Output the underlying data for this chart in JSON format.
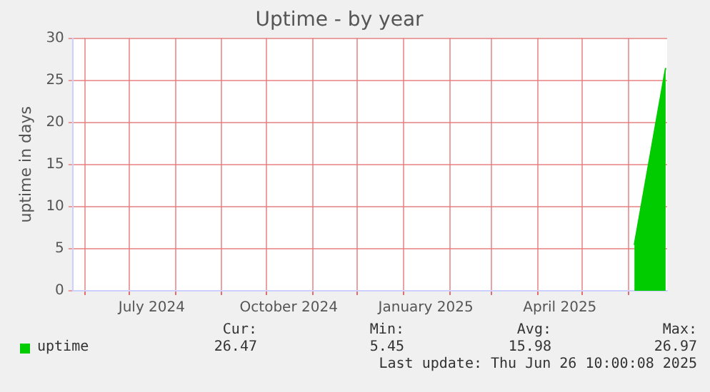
{
  "chart_data": {
    "type": "area",
    "title": "Uptime - by year",
    "ylabel": "uptime in days",
    "x": [
      "2025-06-05",
      "2025-06-26"
    ],
    "series": [
      {
        "name": "uptime",
        "color": "#00cc00",
        "values": [
          5.45,
          26.47
        ]
      }
    ],
    "xlim": [
      "2024-05-24",
      "2025-06-27"
    ],
    "xticks": [
      {
        "value": "2024-06-01",
        "label": null
      },
      {
        "value": "2024-07-01",
        "label": null
      },
      {
        "value": "2024-07-16",
        "label": "July 2024"
      },
      {
        "value": "2024-08-01",
        "label": null
      },
      {
        "value": "2024-09-01",
        "label": null
      },
      {
        "value": "2024-10-01",
        "label": null
      },
      {
        "value": "2024-10-16",
        "label": "October 2024"
      },
      {
        "value": "2024-11-01",
        "label": null
      },
      {
        "value": "2024-12-01",
        "label": null
      },
      {
        "value": "2025-01-01",
        "label": null
      },
      {
        "value": "2025-01-16",
        "label": "January 2025"
      },
      {
        "value": "2025-02-01",
        "label": null
      },
      {
        "value": "2025-03-01",
        "label": null
      },
      {
        "value": "2025-04-01",
        "label": null
      },
      {
        "value": "2025-04-16",
        "label": "April 2025"
      },
      {
        "value": "2025-05-01",
        "label": null
      },
      {
        "value": "2025-06-01",
        "label": null
      }
    ],
    "ylim": [
      0,
      30
    ],
    "yticks": [
      0,
      5,
      10,
      15,
      20,
      25,
      30
    ],
    "grid": true,
    "legend": "bottom",
    "annotations": [
      "Cur:",
      "Min:",
      "Avg:",
      "Max:",
      "26.47",
      "5.45",
      "15.98",
      "26.97",
      "Last update: Thu Jun 26 10:00:08 2025"
    ]
  }
}
